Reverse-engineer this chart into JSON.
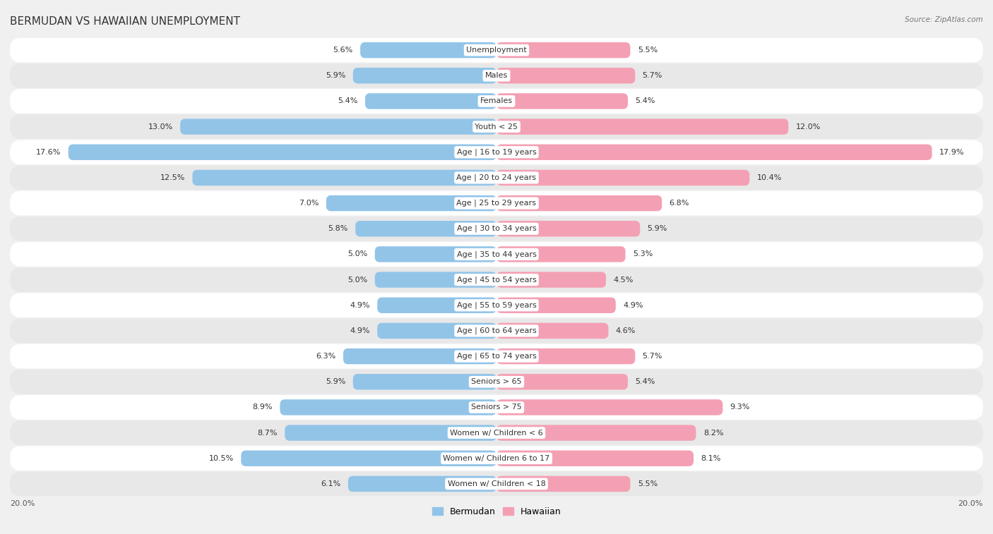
{
  "title": "BERMUDAN VS HAWAIIAN UNEMPLOYMENT",
  "source": "Source: ZipAtlas.com",
  "categories": [
    "Unemployment",
    "Males",
    "Females",
    "Youth < 25",
    "Age | 16 to 19 years",
    "Age | 20 to 24 years",
    "Age | 25 to 29 years",
    "Age | 30 to 34 years",
    "Age | 35 to 44 years",
    "Age | 45 to 54 years",
    "Age | 55 to 59 years",
    "Age | 60 to 64 years",
    "Age | 65 to 74 years",
    "Seniors > 65",
    "Seniors > 75",
    "Women w/ Children < 6",
    "Women w/ Children 6 to 17",
    "Women w/ Children < 18"
  ],
  "bermudan": [
    5.6,
    5.9,
    5.4,
    13.0,
    17.6,
    12.5,
    7.0,
    5.8,
    5.0,
    5.0,
    4.9,
    4.9,
    6.3,
    5.9,
    8.9,
    8.7,
    10.5,
    6.1
  ],
  "hawaiian": [
    5.5,
    5.7,
    5.4,
    12.0,
    17.9,
    10.4,
    6.8,
    5.9,
    5.3,
    4.5,
    4.9,
    4.6,
    5.7,
    5.4,
    9.3,
    8.2,
    8.1,
    5.5
  ],
  "bermudan_color": "#92C4E8",
  "hawaiian_color": "#F4A0B4",
  "bar_height": 0.62,
  "max_val": 20.0,
  "legend_bermudan": "Bermudan",
  "legend_hawaiian": "Hawaiian",
  "bg_color": "#f0f0f0",
  "row_bg_odd": "#ffffff",
  "row_bg_even": "#e8e8e8",
  "title_fontsize": 11,
  "label_fontsize": 8,
  "value_fontsize": 8
}
